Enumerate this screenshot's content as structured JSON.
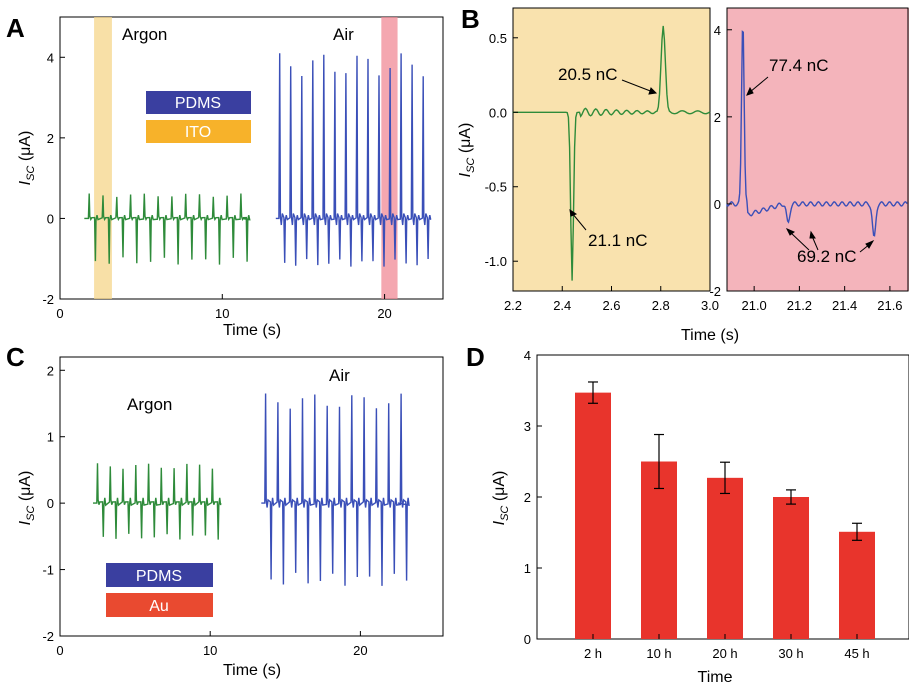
{
  "colors": {
    "argon": "#2e8b3a",
    "air": "#3a4fb8",
    "bar": "#e8342c",
    "shade_yellow": "#f5d58a",
    "shade_pink": "#f08a96",
    "pdms": "#3a3fa0",
    "ito": "#f7b22a",
    "au": "#e94a30"
  },
  "chart_data": [
    {
      "panel": "A",
      "type": "line",
      "xlabel": "Time (s)",
      "ylabel": "I_SC (μA)",
      "ylabel_main": "I",
      "ylabel_sub": "SC",
      "ylabel_unit": " (μA)",
      "xlim": [
        0,
        23.6
      ],
      "ylim": [
        -2,
        5
      ],
      "xticks": [
        0,
        10,
        20
      ],
      "yticks": [
        -2,
        0,
        2,
        4
      ],
      "annotations": [
        "Argon",
        "Air"
      ],
      "legend": [
        "PDMS",
        "ITO"
      ],
      "shaded": [
        [
          2.1,
          3.2
        ],
        [
          19.8,
          20.8
        ]
      ],
      "series": [
        {
          "name": "Argon",
          "x_start": 1.5,
          "x_end": 11.2,
          "period": 0.85,
          "pos_peak": 0.62,
          "neg_peak": -1.15
        },
        {
          "name": "Air",
          "x_start": 13.3,
          "x_end": 22.8,
          "period": 0.68,
          "pos_peak": 4.1,
          "neg_peak": -1.2
        }
      ]
    },
    {
      "panel": "B",
      "type": "line",
      "xlabel": "Time (s)",
      "ylabel": "I_SC (μA)",
      "ylabel_main": "I",
      "ylabel_sub": "SC",
      "ylabel_unit": " (μA)",
      "left": {
        "xlim": [
          2.2,
          3.0
        ],
        "ylim": [
          -1.2,
          0.7
        ],
        "xticks": [
          "2.2",
          "2.4",
          "2.6",
          "2.8",
          "3.0"
        ],
        "yticks": [
          "0.5",
          "0.0",
          "-0.5",
          "-1.0"
        ],
        "annotations": [
          "20.5 nC",
          "21.1 nC"
        ],
        "neg_peak": {
          "x": 2.44,
          "y": -1.13
        },
        "pos_peak": {
          "x": 2.81,
          "y": 0.58
        }
      },
      "right": {
        "xlim": [
          20.88,
          21.68
        ],
        "ylim": [
          -2,
          4.5
        ],
        "xticks": [
          "21.0",
          "21.2",
          "21.4",
          "21.6"
        ],
        "yticks": [
          "4",
          "2",
          "0",
          "-2"
        ],
        "annotations": [
          "77.4 nC",
          "69.2 nC"
        ],
        "pos_peak": {
          "x": 20.95,
          "y": 4.25
        },
        "neg_peaks": [
          {
            "x": 21.15,
            "y": -0.45
          },
          {
            "x": 21.53,
            "y": -0.8
          }
        ]
      }
    },
    {
      "panel": "C",
      "type": "line",
      "xlabel": "Time (s)",
      "ylabel": "I_SC (μA)",
      "ylabel_main": "I",
      "ylabel_sub": "SC",
      "ylabel_unit": " (μA)",
      "xlim": [
        0,
        25.5
      ],
      "ylim": [
        -2,
        2.2
      ],
      "xticks": [
        0,
        10,
        20
      ],
      "yticks": [
        -2,
        -1,
        0,
        1,
        2
      ],
      "annotations": [
        "Argon",
        "Air"
      ],
      "legend": [
        "PDMS",
        "Au"
      ],
      "series": [
        {
          "name": "Argon",
          "x_start": 2.2,
          "x_end": 10.7,
          "period": 0.85,
          "pos_peak": 0.6,
          "neg_peak": -0.55
        },
        {
          "name": "Air",
          "x_start": 13.4,
          "x_end": 22.5,
          "period": 0.82,
          "pos_peak": 1.65,
          "neg_peak": -1.25
        }
      ]
    },
    {
      "panel": "D",
      "type": "bar",
      "xlabel": "Time",
      "ylabel": "I_SC (μA)",
      "ylabel_main": "I",
      "ylabel_sub": "SC",
      "ylabel_unit": " (μA)",
      "ylim": [
        0,
        4
      ],
      "yticks": [
        0,
        1,
        2,
        3,
        4
      ],
      "categories": [
        "2 h",
        "10 h",
        "20 h",
        "30 h",
        "45 h"
      ],
      "values": [
        3.47,
        2.5,
        2.27,
        2.0,
        1.51
      ],
      "errors": [
        0.15,
        0.38,
        0.22,
        0.1,
        0.12
      ]
    }
  ]
}
